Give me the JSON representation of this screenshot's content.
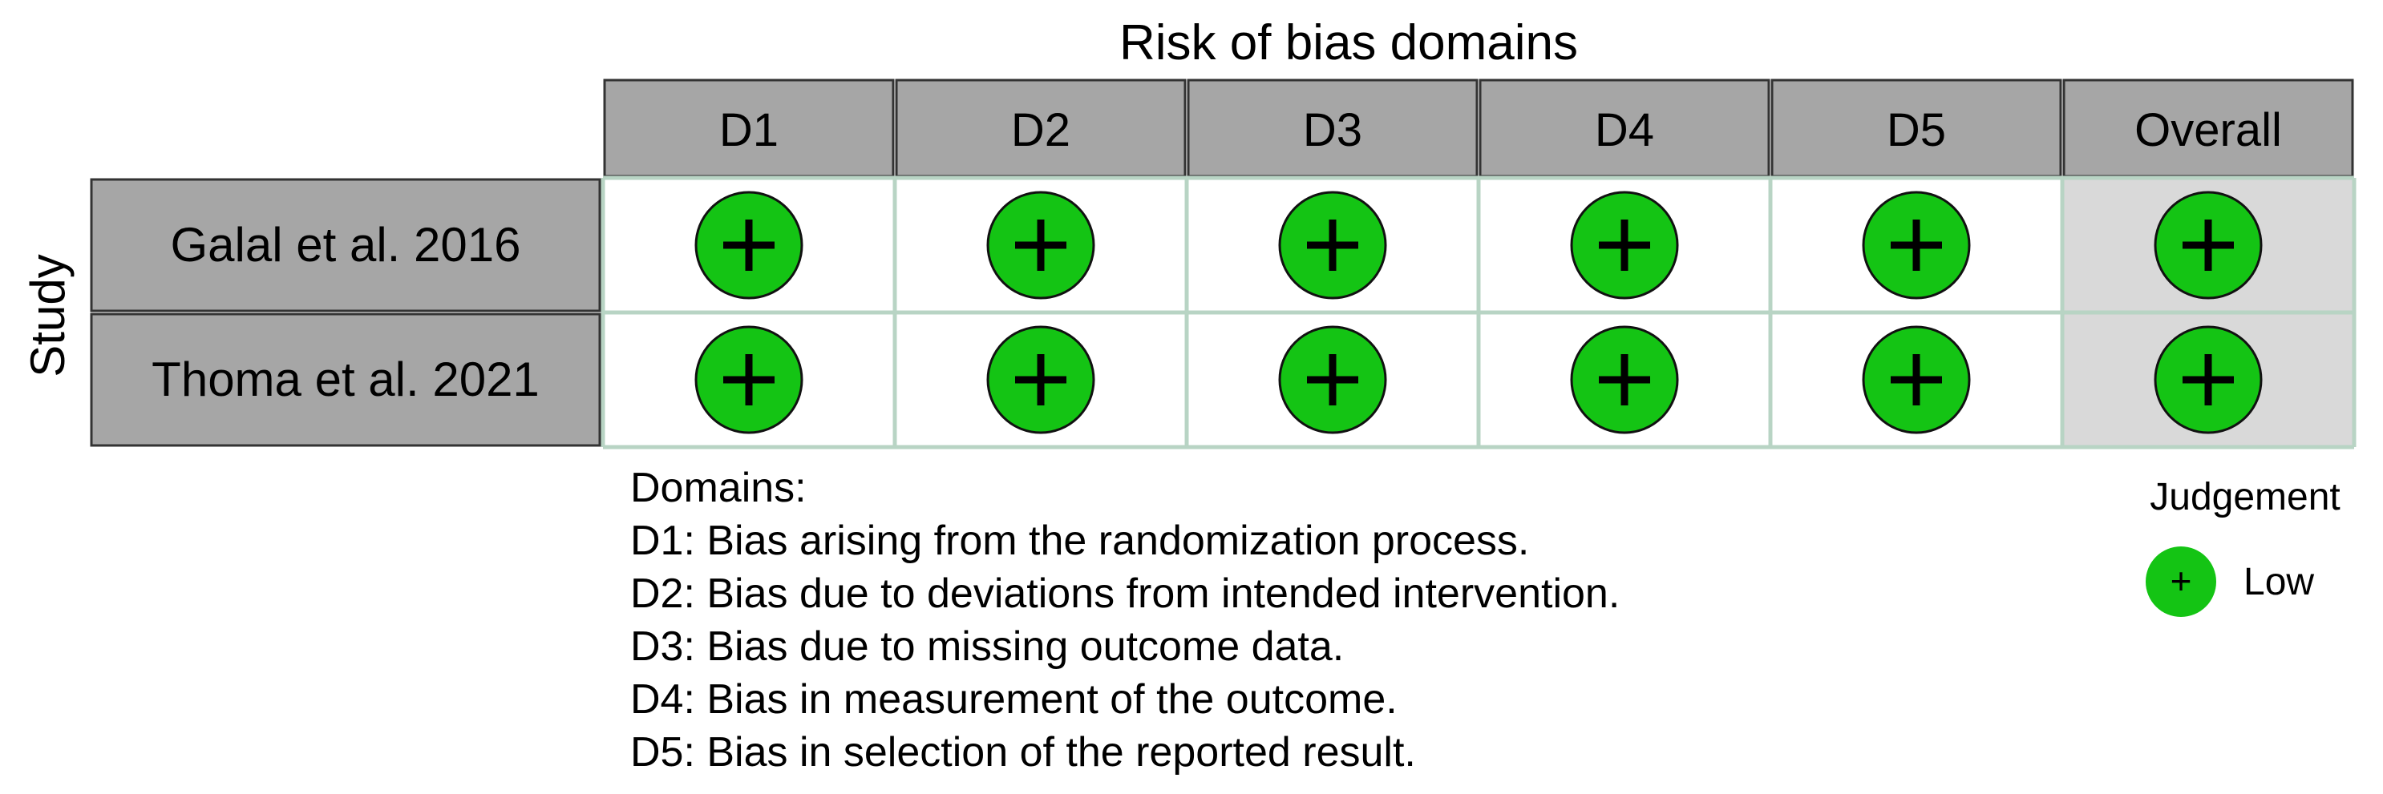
{
  "title": "Risk of bias domains",
  "y_axis_label": "Study",
  "columns": [
    "D1",
    "D2",
    "D3",
    "D4",
    "D5",
    "Overall"
  ],
  "studies": [
    {
      "name": "Galal et al. 2016",
      "judgements": [
        "+",
        "+",
        "+",
        "+",
        "+",
        "+"
      ]
    },
    {
      "name": "Thoma et al. 2021",
      "judgements": [
        "+",
        "+",
        "+",
        "+",
        "+",
        "+"
      ]
    }
  ],
  "domains_heading": "Domains:",
  "domain_descriptions": [
    "D1: Bias arising from the randomization process.",
    "D2: Bias due to deviations from intended intervention.",
    "D3: Bias due to missing outcome data.",
    "D4: Bias in measurement of the outcome.",
    "D5: Bias in selection of the reported result."
  ],
  "legend": {
    "title": "Judgement",
    "items": [
      {
        "symbol": "+",
        "label": "Low"
      }
    ]
  },
  "colors": {
    "low": "#14c414",
    "header_fill": "#a6a6a6",
    "overall_fill": "#d9d9d9",
    "grid_line": "#b8d4c4",
    "border": "#333333"
  }
}
